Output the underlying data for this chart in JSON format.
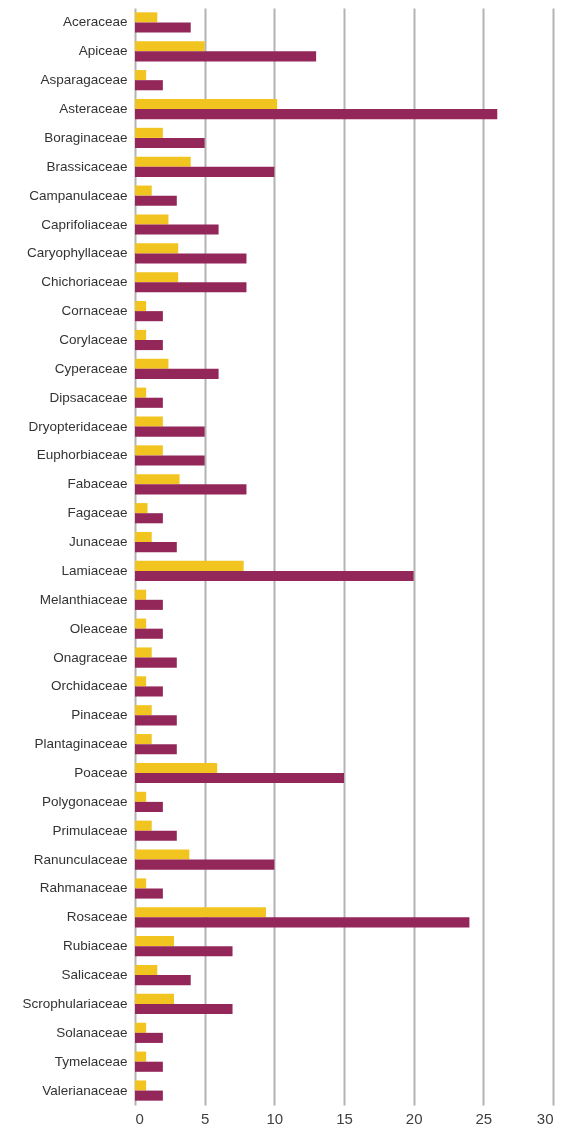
{
  "chart_data": {
    "type": "bar",
    "orientation": "horizontal",
    "categories": [
      "Aceraceae",
      "Apiceae",
      "Asparagaceae",
      "Asteraceae",
      "Boraginaceae",
      "Brassicaceae",
      "Campanulaceae",
      "Caprifoliaceae",
      "Caryophyllaceae",
      "Chichoriaceae",
      "Cornaceae",
      "Corylaceae",
      "Cyperaceae",
      "Dipsacaceae",
      "Dryopteridaceae",
      "Euphorbiaceae",
      "Fabaceae",
      "Fagaceae",
      "Junaceae",
      "Lamiaceae",
      "Melanthiaceae",
      "Oleaceae",
      "Onagraceae",
      "Orchidaceae",
      "Pinaceae",
      "Plantaginaceae",
      "Poaceae",
      "Polygonaceae",
      "Primulaceae",
      "Ranunculaceae",
      "Rahmanaceae",
      "Rosaceae",
      "Rubiaceae",
      "Salicaceae",
      "Scrophulariaceae",
      "Solanaceae",
      "Tymelaceae",
      "Valerianaceae"
    ],
    "series": [
      {
        "color": "#f2c41f",
        "values": [
          1.6,
          5.0,
          0.8,
          10.2,
          2.0,
          4.0,
          1.2,
          2.4,
          3.1,
          3.1,
          0.8,
          0.8,
          2.4,
          0.8,
          2.0,
          2.0,
          3.2,
          0.9,
          1.2,
          7.8,
          0.8,
          0.8,
          1.2,
          0.8,
          1.2,
          1.2,
          5.9,
          0.8,
          1.2,
          3.9,
          0.8,
          9.4,
          2.8,
          1.6,
          2.8,
          0.8,
          0.8,
          0.8
        ]
      },
      {
        "color": "#93275a",
        "values": [
          4,
          13,
          2,
          26,
          5,
          10,
          3,
          6,
          8,
          8,
          2,
          2,
          6,
          2,
          5,
          5,
          8,
          2,
          3,
          20,
          2,
          2,
          3,
          2,
          3,
          3,
          15,
          2,
          3,
          10,
          2,
          24,
          7,
          4,
          7,
          2,
          2,
          2
        ]
      }
    ],
    "xlim": [
      0,
      30
    ],
    "xticks": [
      0,
      5,
      10,
      15,
      20,
      25,
      30
    ],
    "grid": "x"
  }
}
